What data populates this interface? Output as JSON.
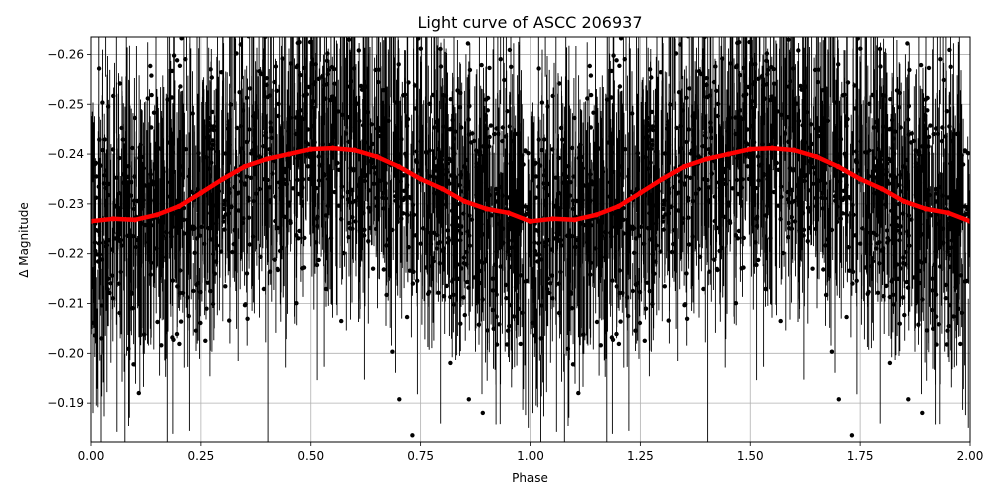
{
  "chart_data": {
    "type": "scatter",
    "title": "Light curve of ASCC 206937",
    "xlabel": "Phase",
    "ylabel": "Δ Magnitude",
    "xlim": [
      0.0,
      2.0
    ],
    "ylim": [
      -0.2635,
      -0.1822
    ],
    "y_inverted": true,
    "grid": true,
    "x_ticks": [
      {
        "value": 0.0,
        "label": "0.00"
      },
      {
        "value": 0.25,
        "label": "0.25"
      },
      {
        "value": 0.5,
        "label": "0.50"
      },
      {
        "value": 0.75,
        "label": "0.75"
      },
      {
        "value": 1.0,
        "label": "1.00"
      },
      {
        "value": 1.25,
        "label": "1.25"
      },
      {
        "value": 1.5,
        "label": "1.50"
      },
      {
        "value": 1.75,
        "label": "1.75"
      },
      {
        "value": 2.0,
        "label": "2.00"
      }
    ],
    "y_ticks": [
      {
        "value": -0.26,
        "label": "−0.26"
      },
      {
        "value": -0.25,
        "label": "−0.25"
      },
      {
        "value": -0.24,
        "label": "−0.24"
      },
      {
        "value": -0.23,
        "label": "−0.23"
      },
      {
        "value": -0.22,
        "label": "−0.22"
      },
      {
        "value": -0.21,
        "label": "−0.21"
      },
      {
        "value": -0.2,
        "label": "−0.20"
      },
      {
        "value": -0.19,
        "label": "−0.19"
      }
    ],
    "series": [
      {
        "kind": "observations",
        "color": "#000000",
        "marker": "dot",
        "error_bars": true,
        "trend_phase": [
          0.0,
          0.1,
          0.2,
          0.3,
          0.4,
          0.5,
          0.55,
          0.6,
          0.7,
          0.8,
          0.9,
          1.0
        ],
        "trend_mag": [
          -0.2265,
          -0.2268,
          -0.2295,
          -0.235,
          -0.239,
          -0.241,
          -0.2412,
          -0.2405,
          -0.2375,
          -0.233,
          -0.229,
          -0.2265
        ],
        "scatter_sigma": 0.012
      },
      {
        "kind": "binned-fit",
        "color": "#ff0000",
        "phase": [
          0.0,
          0.05,
          0.1,
          0.15,
          0.2,
          0.25,
          0.3,
          0.35,
          0.4,
          0.45,
          0.5,
          0.55,
          0.6,
          0.65,
          0.7,
          0.75,
          0.8,
          0.85,
          0.9,
          0.95,
          1.0,
          1.05,
          1.1,
          1.15,
          1.2,
          1.25,
          1.3,
          1.35,
          1.4,
          1.45,
          1.5,
          1.55,
          1.6,
          1.65,
          1.7,
          1.75,
          1.8,
          1.85,
          1.9,
          1.95,
          2.0
        ],
        "mag": [
          -0.2265,
          -0.227,
          -0.2268,
          -0.2278,
          -0.2295,
          -0.2322,
          -0.235,
          -0.2375,
          -0.239,
          -0.24,
          -0.241,
          -0.2412,
          -0.2408,
          -0.2395,
          -0.2375,
          -0.235,
          -0.233,
          -0.2305,
          -0.229,
          -0.2282,
          -0.2265,
          -0.227,
          -0.2268,
          -0.2278,
          -0.2295,
          -0.2322,
          -0.235,
          -0.2375,
          -0.239,
          -0.24,
          -0.241,
          -0.2412,
          -0.2408,
          -0.2395,
          -0.2375,
          -0.235,
          -0.233,
          -0.2305,
          -0.229,
          -0.2282,
          -0.2265
        ]
      }
    ]
  }
}
